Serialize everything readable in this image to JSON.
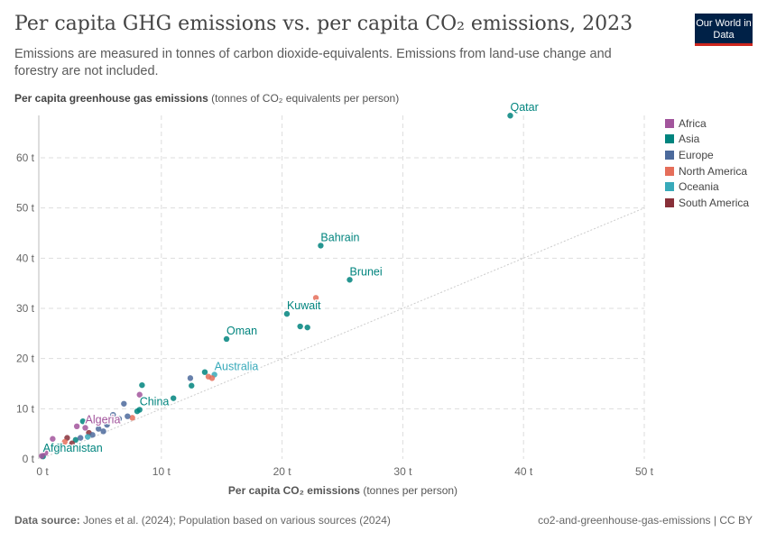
{
  "title": "Per capita GHG emissions vs. per capita CO₂ emissions, 2023",
  "subtitle": "Emissions are measured in tonnes of carbon dioxide-equivalents. Emissions from land-use change and forestry are not included.",
  "logo": "Our World in Data",
  "footer": {
    "source_label": "Data source:",
    "source": "Jones et al. (2024); Population based on various sources (2024)",
    "right": "co2-and-greenhouse-gas-emissions | CC BY"
  },
  "chart_data": {
    "type": "scatter",
    "ylabel_bold": "Per capita greenhouse gas emissions",
    "ylabel_rest": "(tonnes of CO₂ equivalents per person)",
    "xlabel_bold": "Per capita CO₂ emissions",
    "xlabel_rest": "(tonnes per person)",
    "xlim": [
      0,
      50
    ],
    "ylim": [
      0,
      68
    ],
    "xticks": [
      "0 t",
      "10 t",
      "20 t",
      "30 t",
      "40 t",
      "50 t"
    ],
    "yticks": [
      "0 t",
      "10 t",
      "20 t",
      "30 t",
      "40 t",
      "50 t",
      "60 t"
    ],
    "grid": true,
    "reference_line": "y = x (dotted)",
    "legend_position": "right",
    "colors": {
      "Africa": "#a2559c",
      "Asia": "#00847e",
      "Europe": "#4c6a9c",
      "North America": "#e56e5a",
      "Oceania": "#38aaba",
      "South America": "#883039"
    },
    "legend": [
      "Africa",
      "Asia",
      "Europe",
      "North America",
      "Oceania",
      "South America"
    ],
    "points": [
      {
        "label": "Qatar",
        "group": "Asia",
        "x": 38.9,
        "y": 68.4
      },
      {
        "label": "Bahrain",
        "group": "Asia",
        "x": 23.2,
        "y": 42.5
      },
      {
        "label": "Brunei",
        "group": "Asia",
        "x": 25.6,
        "y": 35.7
      },
      {
        "label": "Kuwait",
        "group": "Asia",
        "x": 20.4,
        "y": 28.9
      },
      {
        "label": "Oman",
        "group": "Asia",
        "x": 15.4,
        "y": 23.9
      },
      {
        "label": "Australia",
        "group": "Oceania",
        "x": 14.4,
        "y": 16.8
      },
      {
        "label": "China",
        "group": "Asia",
        "x": 8.2,
        "y": 9.8
      },
      {
        "label": "Algeria",
        "group": "Africa",
        "x": 3.7,
        "y": 6.2
      },
      {
        "label": "Afghanistan",
        "group": "Asia",
        "x": 0.2,
        "y": 0.5
      },
      {
        "label": "",
        "group": "North America",
        "x": 22.8,
        "y": 32.1
      },
      {
        "label": "",
        "group": "Asia",
        "x": 21.5,
        "y": 26.4
      },
      {
        "label": "",
        "group": "Asia",
        "x": 22.1,
        "y": 26.2
      },
      {
        "label": "",
        "group": "Asia",
        "x": 13.6,
        "y": 17.3
      },
      {
        "label": "",
        "group": "North America",
        "x": 13.9,
        "y": 16.4
      },
      {
        "label": "",
        "group": "North America",
        "x": 14.2,
        "y": 16.1
      },
      {
        "label": "",
        "group": "Europe",
        "x": 12.4,
        "y": 16.1
      },
      {
        "label": "",
        "group": "Asia",
        "x": 12.5,
        "y": 14.6
      },
      {
        "label": "",
        "group": "Asia",
        "x": 8.4,
        "y": 14.7
      },
      {
        "label": "",
        "group": "Africa",
        "x": 8.2,
        "y": 12.8
      },
      {
        "label": "",
        "group": "Asia",
        "x": 11.0,
        "y": 12.1
      },
      {
        "label": "",
        "group": "Europe",
        "x": 6.9,
        "y": 11.0
      },
      {
        "label": "",
        "group": "Asia",
        "x": 8.0,
        "y": 9.5
      },
      {
        "label": "",
        "group": "North America",
        "x": 7.6,
        "y": 8.2
      },
      {
        "label": "",
        "group": "Europe",
        "x": 7.2,
        "y": 8.5
      },
      {
        "label": "",
        "group": "Europe",
        "x": 6.5,
        "y": 8.0
      },
      {
        "label": "",
        "group": "Europe",
        "x": 6.0,
        "y": 8.8
      },
      {
        "label": "",
        "group": "Europe",
        "x": 5.5,
        "y": 6.8
      },
      {
        "label": "",
        "group": "Africa",
        "x": 3.0,
        "y": 6.5
      },
      {
        "label": "",
        "group": "Asia",
        "x": 3.5,
        "y": 7.5
      },
      {
        "label": "",
        "group": "Europe",
        "x": 4.8,
        "y": 6.0
      },
      {
        "label": "",
        "group": "South America",
        "x": 4.0,
        "y": 5.2
      },
      {
        "label": "",
        "group": "Europe",
        "x": 4.3,
        "y": 4.8
      },
      {
        "label": "",
        "group": "Oceania",
        "x": 3.9,
        "y": 4.4
      },
      {
        "label": "",
        "group": "South America",
        "x": 2.2,
        "y": 4.2
      },
      {
        "label": "",
        "group": "Africa",
        "x": 1.0,
        "y": 4.0
      },
      {
        "label": "",
        "group": "North America",
        "x": 2.0,
        "y": 3.4
      },
      {
        "label": "",
        "group": "Asia",
        "x": 2.9,
        "y": 3.8
      },
      {
        "label": "",
        "group": "Europe",
        "x": 3.3,
        "y": 4.2
      },
      {
        "label": "",
        "group": "South America",
        "x": 2.6,
        "y": 3.1
      },
      {
        "label": "",
        "group": "Africa",
        "x": 0.4,
        "y": 1.2
      },
      {
        "label": "",
        "group": "Africa",
        "x": 0.1,
        "y": 0.6
      },
      {
        "label": "",
        "group": "Oceania",
        "x": 1.7,
        "y": 2.6
      },
      {
        "label": "",
        "group": "Europe",
        "x": 5.2,
        "y": 5.5
      },
      {
        "label": "",
        "group": "Asia",
        "x": 1.5,
        "y": 2.5
      }
    ]
  }
}
